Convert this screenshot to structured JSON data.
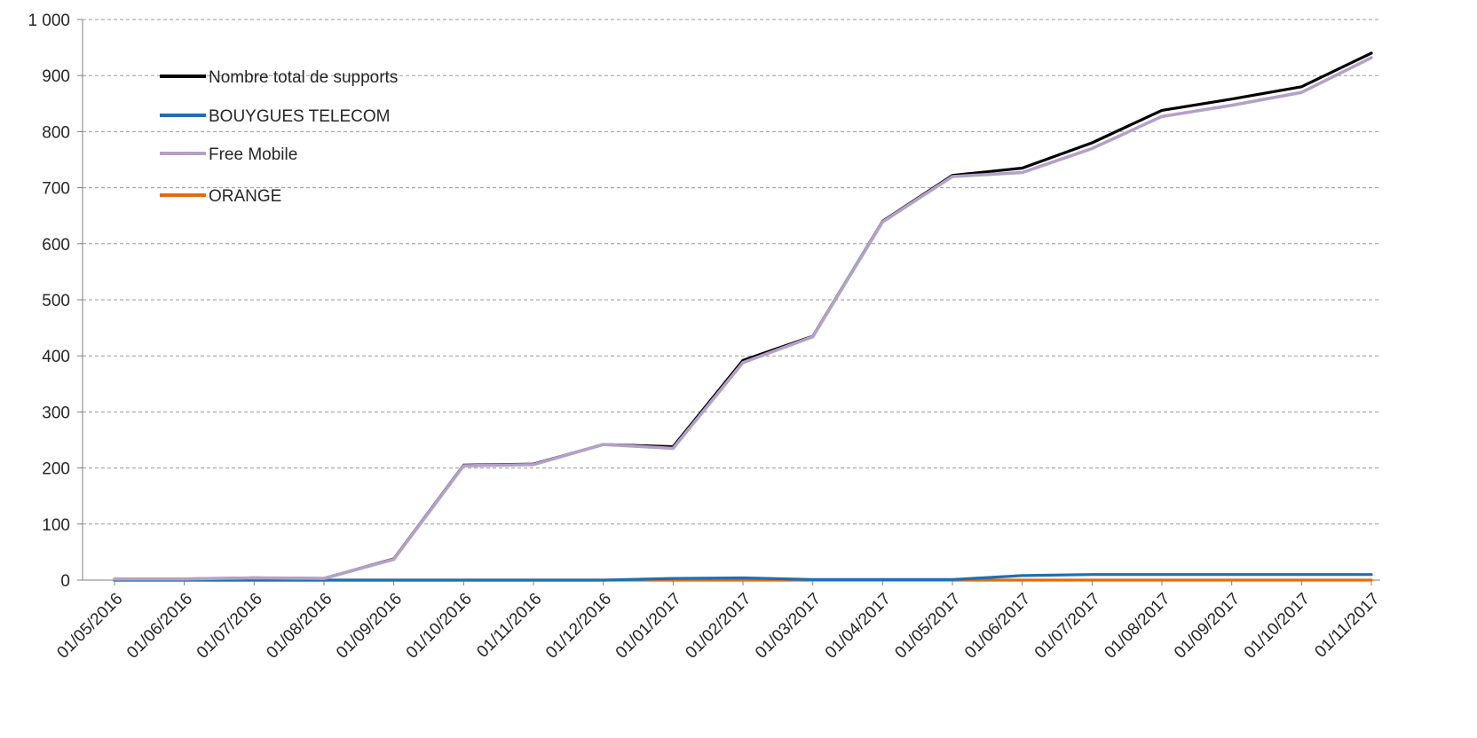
{
  "chart_data": {
    "type": "line",
    "title": "",
    "xlabel": "",
    "ylabel": "",
    "ylim": [
      0,
      1000
    ],
    "yticks": [
      0,
      100,
      200,
      300,
      400,
      500,
      600,
      700,
      800,
      900,
      1000
    ],
    "ytick_labels": [
      "0",
      "100",
      "200",
      "300",
      "400",
      "500",
      "600",
      "700",
      "800",
      "900",
      "1 000"
    ],
    "x": [
      "01/05/2016",
      "01/06/2016",
      "01/07/2016",
      "01/08/2016",
      "01/09/2016",
      "01/10/2016",
      "01/11/2016",
      "01/12/2016",
      "01/01/2017",
      "01/02/2017",
      "01/03/2017",
      "01/04/2017",
      "01/05/2017",
      "01/06/2017",
      "01/07/2017",
      "01/08/2017",
      "01/09/2017",
      "01/10/2017",
      "01/11/2017"
    ],
    "grid": true,
    "legend_position": "top-left",
    "series": [
      {
        "name": "Nombre total de supports",
        "color": "#000000",
        "values": [
          2,
          2,
          4,
          3,
          38,
          205,
          207,
          242,
          238,
          392,
          435,
          640,
          722,
          735,
          780,
          838,
          858,
          880,
          940
        ]
      },
      {
        "name": "BOUYGUES TELECOM",
        "color": "#1f6fb2",
        "values": [
          0,
          0,
          0,
          0,
          0,
          0,
          0,
          0,
          3,
          4,
          1,
          1,
          1,
          8,
          10,
          10,
          10,
          10,
          10
        ]
      },
      {
        "name": "Free Mobile",
        "color": "#b3a2c7",
        "values": [
          2,
          2,
          4,
          3,
          37,
          204,
          206,
          242,
          235,
          388,
          434,
          639,
          720,
          727,
          770,
          827,
          847,
          870,
          932
        ]
      },
      {
        "name": "ORANGE",
        "color": "#e36c0a",
        "values": [
          0,
          0,
          0,
          0,
          0,
          0,
          0,
          0,
          0,
          0,
          0,
          0,
          0,
          0,
          0,
          0,
          0,
          0,
          0
        ]
      }
    ]
  }
}
